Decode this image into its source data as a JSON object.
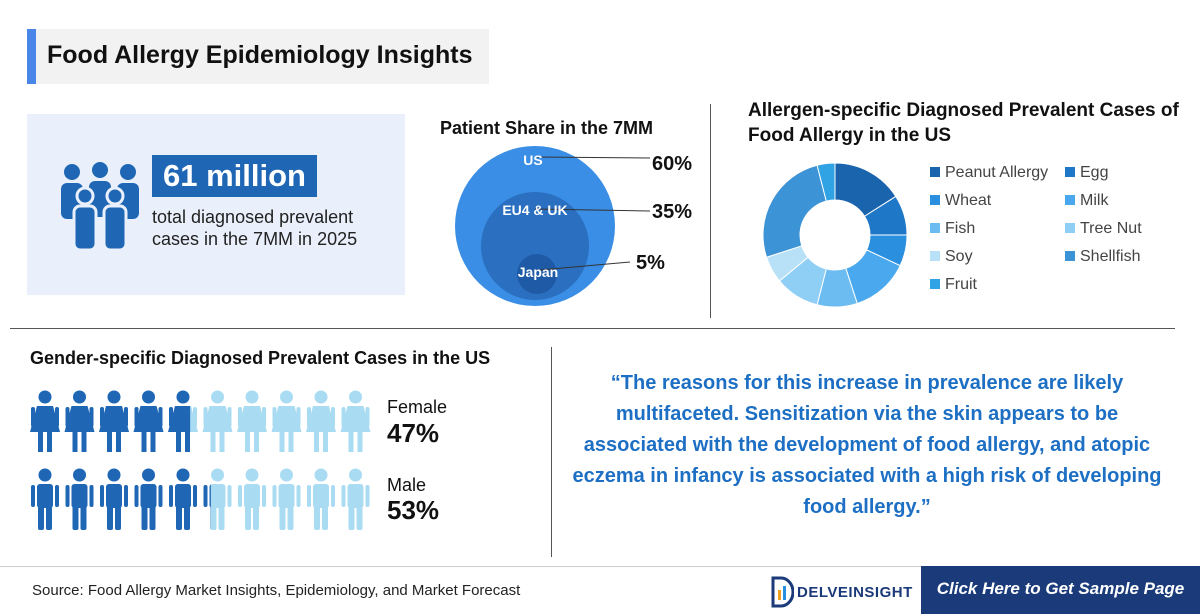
{
  "header": {
    "title": "Food Allergy Epidemiology Insights"
  },
  "stat": {
    "value": "61 million",
    "description": "total diagnosed prevalent cases in the 7MM in 2025"
  },
  "colors": {
    "accent": "#4a86e8",
    "dark_blue": "#1f67b5",
    "navy": "#1a3a7a",
    "quote_blue": "#1d6fc4"
  },
  "chart_data": [
    {
      "type": "nested-bubble",
      "title": "Patient Share in the 7MM",
      "categories": [
        "US",
        "EU4 & UK",
        "Japan"
      ],
      "values": [
        60,
        35,
        5
      ],
      "value_labels": [
        "60%",
        "35%",
        "5%"
      ],
      "colors": [
        "#3a8ee6",
        "#2a6fc0",
        "#1f5aa6"
      ]
    },
    {
      "type": "pie",
      "title": "Allergen-specific Diagnosed Prevalent Cases of Food Allergy in the US",
      "donut": true,
      "categories": [
        "Peanut Allergy",
        "Egg",
        "Wheat",
        "Milk",
        "Fish",
        "Tree Nut",
        "Soy",
        "Shellfish",
        "Fruit"
      ],
      "values": [
        16,
        9,
        7,
        13,
        9,
        10,
        6,
        26,
        4
      ],
      "colors": [
        "#1a63ad",
        "#1f77c8",
        "#2b8fe0",
        "#4aa8ee",
        "#6cbcf2",
        "#8fcff5",
        "#b8e1f8",
        "#3c93d6",
        "#2fa3e3"
      ],
      "legend": "right"
    },
    {
      "type": "icon-array",
      "title": "Gender-specific Diagnosed Prevalent Cases in the US",
      "series": [
        {
          "name": "Female",
          "value": 47,
          "label": "47%"
        },
        {
          "name": "Male",
          "value": 53,
          "label": "53%"
        }
      ],
      "icons_per_row": 10
    }
  ],
  "quote": "“The reasons for this increase in prevalence are likely multifaceted. Sensitization via the skin appears to be associated with the development of food allergy, and atopic eczema in infancy is associated with a high risk of developing food allergy.”",
  "footer": {
    "source": "Source: Food Allergy Market Insights, Epidemiology, and Market Forecast",
    "logo": "DELVEINSIGHT",
    "cta": "Click Here to Get Sample Page"
  }
}
